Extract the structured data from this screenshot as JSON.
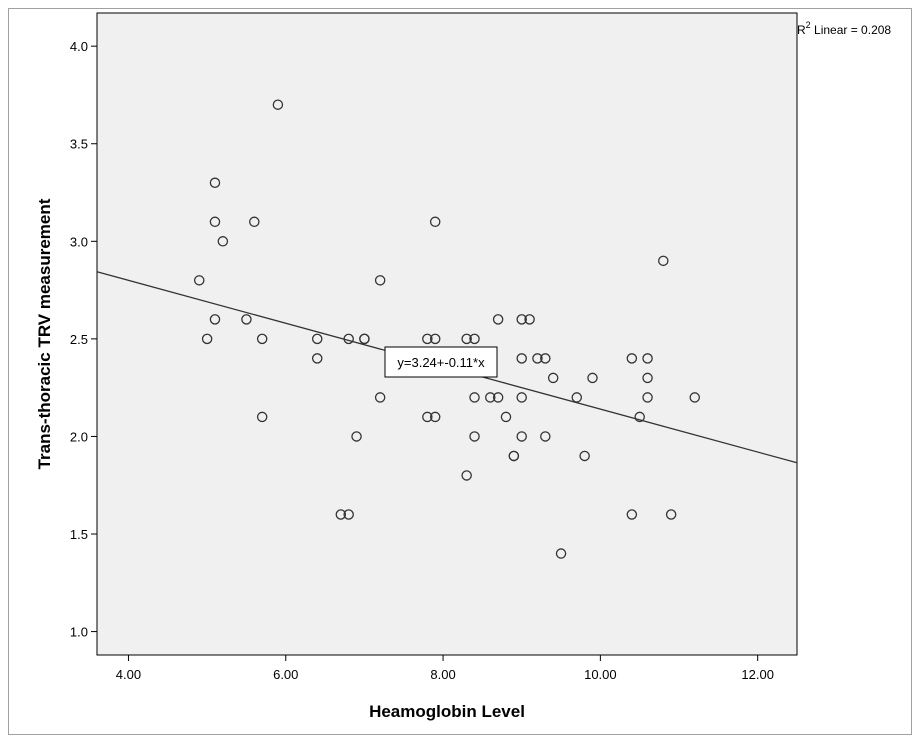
{
  "chart_data": {
    "type": "scatter",
    "title": "",
    "xlabel": "Heamoglobin Level",
    "ylabel": "Trans-thoracic TRV measurement",
    "xlim": [
      3.6,
      12.5
    ],
    "ylim": [
      0.88,
      4.17
    ],
    "xticks": [
      "4.00",
      "6.00",
      "8.00",
      "10.00",
      "12.00"
    ],
    "xtick_values": [
      4,
      6,
      8,
      10,
      12
    ],
    "yticks": [
      "1.0",
      "1.5",
      "2.0",
      "2.5",
      "3.0",
      "3.5",
      "4.0"
    ],
    "ytick_values": [
      1.0,
      1.5,
      2.0,
      2.5,
      3.0,
      3.5,
      4.0
    ],
    "grid": false,
    "plot_background": "#f0f0f0",
    "marker": "open-circle",
    "fit_line": {
      "intercept": 3.24,
      "slope": -0.11,
      "label": "y=3.24+-0.11*x"
    },
    "r2_label": {
      "prefix": "R",
      "sup": "2",
      "suffix": " Linear = 0.208"
    },
    "points": [
      {
        "x": 4.9,
        "y": 2.8
      },
      {
        "x": 5.0,
        "y": 2.5
      },
      {
        "x": 5.1,
        "y": 3.3
      },
      {
        "x": 5.1,
        "y": 3.1
      },
      {
        "x": 5.1,
        "y": 2.6
      },
      {
        "x": 5.2,
        "y": 3.0
      },
      {
        "x": 5.5,
        "y": 2.6
      },
      {
        "x": 5.6,
        "y": 3.1
      },
      {
        "x": 5.7,
        "y": 2.5
      },
      {
        "x": 5.7,
        "y": 2.1
      },
      {
        "x": 5.9,
        "y": 3.7
      },
      {
        "x": 6.4,
        "y": 2.5
      },
      {
        "x": 6.4,
        "y": 2.4
      },
      {
        "x": 6.7,
        "y": 1.6
      },
      {
        "x": 6.8,
        "y": 1.6
      },
      {
        "x": 6.8,
        "y": 2.5
      },
      {
        "x": 6.9,
        "y": 2.0
      },
      {
        "x": 7.0,
        "y": 2.5
      },
      {
        "x": 7.0,
        "y": 2.5
      },
      {
        "x": 7.2,
        "y": 2.8
      },
      {
        "x": 7.2,
        "y": 2.2
      },
      {
        "x": 7.8,
        "y": 2.5
      },
      {
        "x": 7.8,
        "y": 2.1
      },
      {
        "x": 7.9,
        "y": 3.1
      },
      {
        "x": 7.9,
        "y": 2.5
      },
      {
        "x": 7.9,
        "y": 2.1
      },
      {
        "x": 8.3,
        "y": 2.5
      },
      {
        "x": 8.3,
        "y": 1.8
      },
      {
        "x": 8.4,
        "y": 2.5
      },
      {
        "x": 8.4,
        "y": 2.2
      },
      {
        "x": 8.4,
        "y": 2.0
      },
      {
        "x": 8.6,
        "y": 2.2
      },
      {
        "x": 8.7,
        "y": 2.6
      },
      {
        "x": 8.7,
        "y": 2.2
      },
      {
        "x": 8.8,
        "y": 2.1
      },
      {
        "x": 8.9,
        "y": 1.9
      },
      {
        "x": 8.9,
        "y": 1.9
      },
      {
        "x": 9.0,
        "y": 2.6
      },
      {
        "x": 9.0,
        "y": 2.4
      },
      {
        "x": 9.0,
        "y": 2.2
      },
      {
        "x": 9.0,
        "y": 2.0
      },
      {
        "x": 9.1,
        "y": 2.6
      },
      {
        "x": 9.2,
        "y": 2.4
      },
      {
        "x": 9.3,
        "y": 2.4
      },
      {
        "x": 9.3,
        "y": 2.0
      },
      {
        "x": 9.4,
        "y": 2.3
      },
      {
        "x": 9.5,
        "y": 1.4
      },
      {
        "x": 9.7,
        "y": 2.2
      },
      {
        "x": 9.8,
        "y": 1.9
      },
      {
        "x": 9.9,
        "y": 2.3
      },
      {
        "x": 10.4,
        "y": 2.4
      },
      {
        "x": 10.4,
        "y": 1.6
      },
      {
        "x": 10.5,
        "y": 2.1
      },
      {
        "x": 10.6,
        "y": 2.4
      },
      {
        "x": 10.6,
        "y": 2.3
      },
      {
        "x": 10.6,
        "y": 2.2
      },
      {
        "x": 10.8,
        "y": 2.9
      },
      {
        "x": 10.9,
        "y": 1.6
      },
      {
        "x": 11.2,
        "y": 2.2
      }
    ]
  },
  "colors": {
    "marker_stroke": "#333333",
    "fit_line": "#333333",
    "axis": "#000000",
    "plot_border": "#000000"
  }
}
